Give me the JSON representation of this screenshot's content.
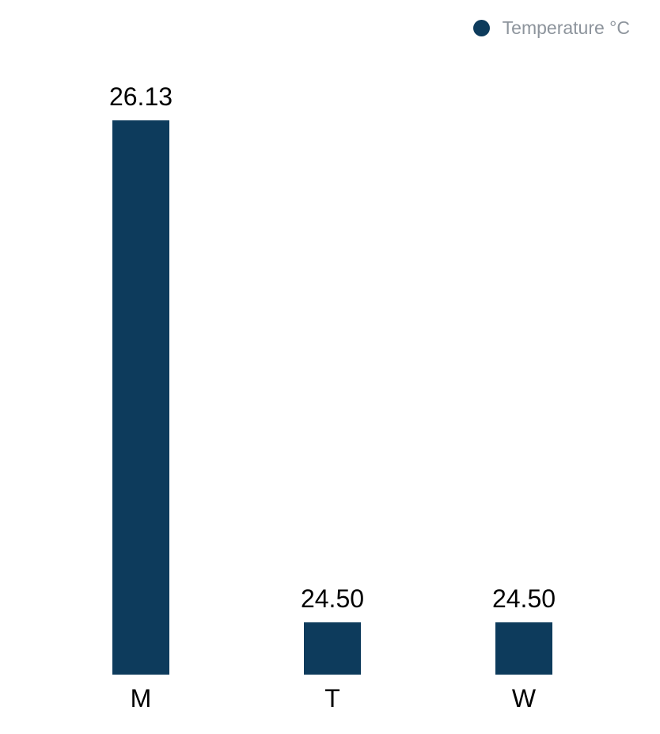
{
  "chart_data": {
    "type": "bar",
    "title": "",
    "categories": [
      "M",
      "T",
      "W"
    ],
    "series": [
      {
        "name": "Temperature °C",
        "values": [
          26.13,
          24.5,
          24.5
        ]
      }
    ],
    "value_labels": [
      "26.13",
      "24.50",
      "24.50"
    ],
    "legend": {
      "label": "Temperature °C",
      "position": "top-right",
      "marker": "circle"
    },
    "ylim": [
      24.33,
      26.13
    ],
    "xlabel": "",
    "ylabel": "",
    "grid": false,
    "axes_visible": false,
    "colors": {
      "bar": "#0d3b5c",
      "legend_marker": "#0d3b5c",
      "legend_text": "#8d949c",
      "value_label": "#000000",
      "category_label": "#000000",
      "background": "#ffffff"
    }
  }
}
